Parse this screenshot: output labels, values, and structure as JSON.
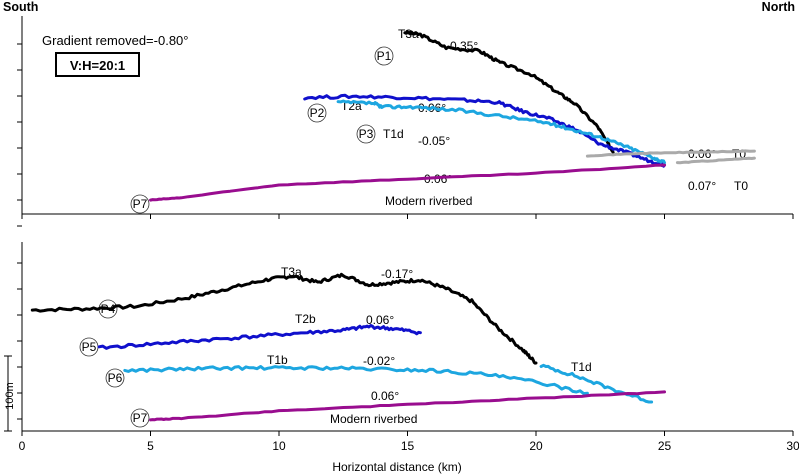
{
  "chart_data": {
    "type": "line",
    "header_left": "South",
    "header_right": "North",
    "gradient_note": "Gradient removed=-0.80°",
    "scale_note": "V:H=20:1",
    "xlabel": "Horizontal distance (km)",
    "xlim": [
      0,
      30
    ],
    "x_ticks": [
      "0",
      "5",
      "10",
      "15",
      "20",
      "25",
      "30"
    ],
    "vertical_scale_label": "100m",
    "colors": {
      "black": "#000000",
      "dark_blue": "#1010cc",
      "light_blue": "#1da6e0",
      "purple": "#990d8f",
      "grey": "#aaaaaa"
    },
    "panels": [
      {
        "name": "upper",
        "profiles": [
          {
            "id": "P1",
            "terrace": "T3a",
            "gradient": "-0.35°",
            "color": "black",
            "x": [
              14.9,
              15.5,
              16.5,
              17.8,
              18.6,
              19.8,
              20.8,
              21.5,
              22.4,
              23.0
            ],
            "y": [
              22.6,
              22.4,
              21.3,
              21.0,
              20.0,
              19.0,
              17.5,
              16.5,
              14.5,
              12.3
            ]
          },
          {
            "id": "P2",
            "terrace": "T2a",
            "gradient": "0.06°",
            "color": "dark_blue",
            "x": [
              11.0,
              13.0,
              15.0,
              17.0,
              18.5,
              19.5,
              20.5,
              21.5,
              22.5,
              23.5,
              24.5,
              25.0
            ],
            "y": [
              17.0,
              17.1,
              17.0,
              16.8,
              16.6,
              15.8,
              15.2,
              14.3,
              13.0,
              12.3,
              11.5,
              11.2
            ]
          },
          {
            "id": "P3",
            "terrace": "T1d",
            "gradient": "-0.05°",
            "color": "light_blue",
            "x": [
              12.3,
              13.7,
              14.0,
              15.2,
              17.0,
              19.0,
              20.5,
              21.5,
              22.5,
              23.5,
              24.5,
              25.0
            ],
            "y": [
              16.6,
              16.5,
              16.2,
              16.2,
              15.9,
              15.3,
              14.8,
              14.2,
              13.6,
              12.8,
              11.9,
              11.4
            ]
          },
          {
            "id": "P7",
            "terrace": "Modern riverbed",
            "gradient": "0.06°",
            "color": "purple",
            "x": [
              5.0,
              6.2,
              10.0,
              15.0,
              20.0,
              25.0
            ],
            "y": [
              8.2,
              8.4,
              9.5,
              10.0,
              10.5,
              11.2
            ]
          },
          {
            "id": "",
            "terrace": "T0",
            "gradient": "0.06°",
            "color": "grey",
            "x": [
              22.0,
              24.0,
              26.0,
              28.5
            ],
            "y": [
              12.0,
              12.2,
              12.3,
              12.4
            ]
          },
          {
            "id": "",
            "terrace": "T0",
            "gradient": "0.07°",
            "color": "grey",
            "x": [
              25.5,
              27.0,
              28.5
            ],
            "y": [
              11.4,
              11.6,
              11.8
            ]
          }
        ]
      },
      {
        "name": "lower",
        "profiles": [
          {
            "id": "P4",
            "terrace": "T3a",
            "gradient": "-0.17°",
            "color": "black",
            "x": [
              0.4,
              2.5,
              4.5,
              6.5,
              8.0,
              9.5,
              10.5,
              11.5,
              12.5,
              13.5,
              14.5,
              15.5,
              16.5,
              17.5,
              18.5,
              19.5,
              20.0
            ],
            "y": [
              18.6,
              18.7,
              18.9,
              19.6,
              20.3,
              21.0,
              21.3,
              20.8,
              21.4,
              20.6,
              20.8,
              21.0,
              20.3,
              19.3,
              17.2,
              15.4,
              14.4
            ]
          },
          {
            "id": "",
            "terrace": "T1d",
            "gradient": "",
            "color": "light_blue",
            "x": [
              20.2,
              21.5,
              23.0,
              24.5
            ],
            "y": [
              14.2,
              13.4,
              12.3,
              11.3
            ]
          },
          {
            "id": "P5",
            "terrace": "T2b",
            "gradient": "0.06°",
            "color": "dark_blue",
            "x": [
              3.0,
              5.0,
              7.0,
              9.0,
              11.0,
              12.5,
              13.5,
              14.5,
              15.5
            ],
            "y": [
              15.6,
              15.9,
              16.2,
              16.5,
              16.8,
              17.0,
              17.3,
              17.1,
              16.8
            ]
          },
          {
            "id": "P6",
            "terrace": "T1b",
            "gradient": "-0.02°",
            "color": "light_blue",
            "x": [
              4.0,
              6.0,
              8.0,
              10.0,
              12.0,
              14.0,
              16.0,
              18.0,
              20.0,
              22.0
            ],
            "y": [
              13.8,
              13.9,
              14.0,
              14.0,
              14.0,
              13.9,
              13.8,
              13.5,
              12.9,
              12.0
            ]
          },
          {
            "id": "P7",
            "terrace": "Modern riverbed",
            "gradient": "0.06°",
            "color": "purple",
            "x": [
              5.0,
              6.2,
              10.0,
              15.0,
              20.0,
              25.0
            ],
            "y": [
              9.9,
              10.0,
              10.6,
              11.1,
              11.6,
              12.1
            ]
          }
        ]
      }
    ]
  }
}
